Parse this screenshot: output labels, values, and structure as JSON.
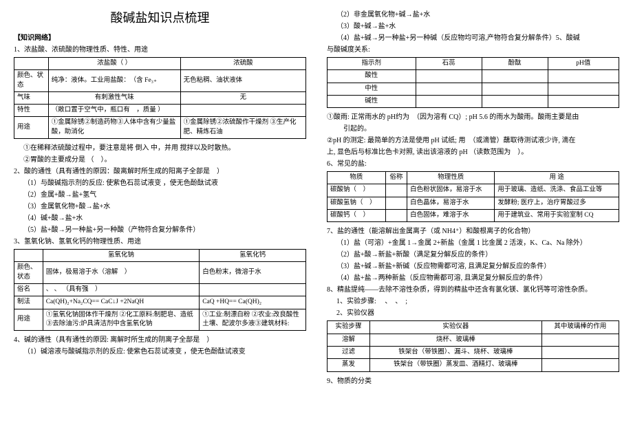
{
  "title": "酸碱盐知识点梳理",
  "left": {
    "kn": "【知识网络】",
    "p1": "1、浓盐酸、浓硫酸的物理性质、特性、用途",
    "t1": {
      "h": [
        "",
        "浓盐酸（ ）",
        "浓硫酸"
      ],
      "r1": [
        "颜色、状态",
        "纯净：液体。工业用盐酸：　（含 Fe₃₊",
        "无色粘稠、油状液体"
      ],
      "r2": [
        "气味",
        "有刺激性气味",
        "无"
      ],
      "r3": [
        "特性",
        "（敞口置于空气中，瓶口有　，质量 ）",
        ""
      ],
      "r4": [
        "用途",
        "①金属除锈②制造药物③人体中含有少量盐 酸，助消化",
        "①金属除锈②浓硫酸作干燥剂 ③生产化肥、精炼石油"
      ]
    },
    "l1a": "①在稀释浓硫酸过程中，要注意是将 倒入 中，并用 搅拌以及时散热。",
    "l1b": "②胃酸的主要成分是 （　）。",
    "p2": "2、酸的通性（具有通性的原因：酸离解时所生成的阳离子全部是　）",
    "l2a": "（1）与酸碱指示剂的反应: 使紫色石蕊试液变 ，使无色酚酞试液",
    "l2b": "（2）金属+酸→盐+氢气",
    "l2c": "（3）金属氧化物+酸→盐+水",
    "l2d": "（4）碱+酸→盐+水",
    "l2e": "（5）盐+酸→另一种盐+另一种酸（产物符合复分解条件）",
    "p3": "3、氢氧化钠、氢氧化钙的物理性质、用途",
    "t3": {
      "h": [
        "",
        "氢氧化钠",
        "氢氧化钙"
      ],
      "r1": [
        "颜色、状态",
        "固体，极易溶于水（溶解　）",
        "白色粉末，微溶于水"
      ],
      "r2": [
        "俗名",
        "、 、 （具有强　）",
        ""
      ],
      "r3": [
        "制法",
        "Ca(QH)₂+Na₂CQ== CaC↓J +2NaQH",
        "CaQ +HQ== Ca(QH)₂"
      ],
      "r4": [
        "用途",
        "①氢氧化钠固体作干燥剂 ②化工原料:制肥皂、造纸 ③去除油污:炉具清洁剂中含氢氧化钠",
        "①工业:制漂白粉 ②农业:改良酸性土壤、配波尔多液③建筑材料:"
      ]
    },
    "p4": "4、碱的通性（具有通性的原因: 离解时所生成的阴离子全部是　）",
    "l4a": "（1）碱溶液与酸碱指示剂的反应: 使紫色石蕊试液变 ，使无色酚酞试液变"
  },
  "right": {
    "l1": "（2）非金属氧化物+碱→盐+水",
    "l2": "（3）酸+碱→盐+水",
    "l3": "（4）盐+碱→另一种盐+另一种碱（反应物均可溶,产物符合复分解条件）5、酸碱",
    "l4": "与酸碱度关系:",
    "t5": {
      "h": [
        "指示剂",
        "石蕊",
        "酚酞",
        "pH值"
      ],
      "r1": [
        "酸性",
        "",
        "",
        ""
      ],
      "r2": [
        "中性",
        "",
        "",
        ""
      ],
      "r3": [
        "碱性",
        "",
        "",
        ""
      ]
    },
    "l5a": "①酸雨: 正常雨水的 pH约为　（因为溶有 CQ）; pH 5.6 的雨水为酸雨。酸雨主要是由",
    "l5b": "　引起的。",
    "l5c": "②pH 的测定: 最简单的方法是使用 pH 试纸; 用　（或滴管）蘸取待测试液少许, 滴在",
    "l5d": "上, 显色后与标准比色卡对照, 读出该溶液的 pH （读数范围为　）。",
    "p6": "6、常见的盐:",
    "t6": {
      "h": [
        "物质",
        "俗称",
        "物理性质",
        "用 途"
      ],
      "r1": [
        "碳酸钠（　）",
        "",
        "白色粉状固体，易溶于水",
        "用于玻璃、造纸、洗涤、食品工业等"
      ],
      "r2": [
        "碳酸氢钠（　）",
        "",
        "白色晶体，易溶于水",
        "发酵粉; 医疗上，治疗胃酸过多"
      ],
      "r3": [
        "碳酸钙（　）",
        "",
        "白色固体，难溶于水",
        "用于建筑业、常用于实验室制 CQ"
      ]
    },
    "p7": "7、盐的通性（能溶解出金属离子（或 NH4⁺）和酸根离子的化合物）",
    "l7a": "（1）盐（可溶）+金属 1→金属 2+新盐（金属 1 比金属 2 活泼，K、Ca、Na 除外）",
    "l7b": "（2）盐+酸→新盐+新酸（满足复分解反应的条件）",
    "l7c": "（3）盐+碱→新盐+新碱（反应物需都可溶, 且满足复分解反应的条件）",
    "l7d": "（4）盐+盐→两种新盐（反应物需都可溶, 且满足复分解反应的条件）",
    "p8": "8、精盐提纯——去除不溶性杂质，得到的精盐中还含有氯化镁、氯化钙等可溶性杂质。",
    "l8a": "1、实验步骤: 　、　、　;",
    "l8b": "2、实验仪器",
    "t8": {
      "h": [
        "实验步骤",
        "实验仪器",
        "其中玻璃棒的作用"
      ],
      "r1": [
        "溶解",
        "烧杯、玻璃棒",
        ""
      ],
      "r2": [
        "过滤",
        "铁架台（带铁圈）、漏斗、烧杯、玻璃棒",
        ""
      ],
      "r3": [
        "蒸发",
        "铁架台（带铁圈）蒸发皿、酒精灯、玻璃棒",
        ""
      ]
    },
    "p9": "9、物质的分类"
  }
}
